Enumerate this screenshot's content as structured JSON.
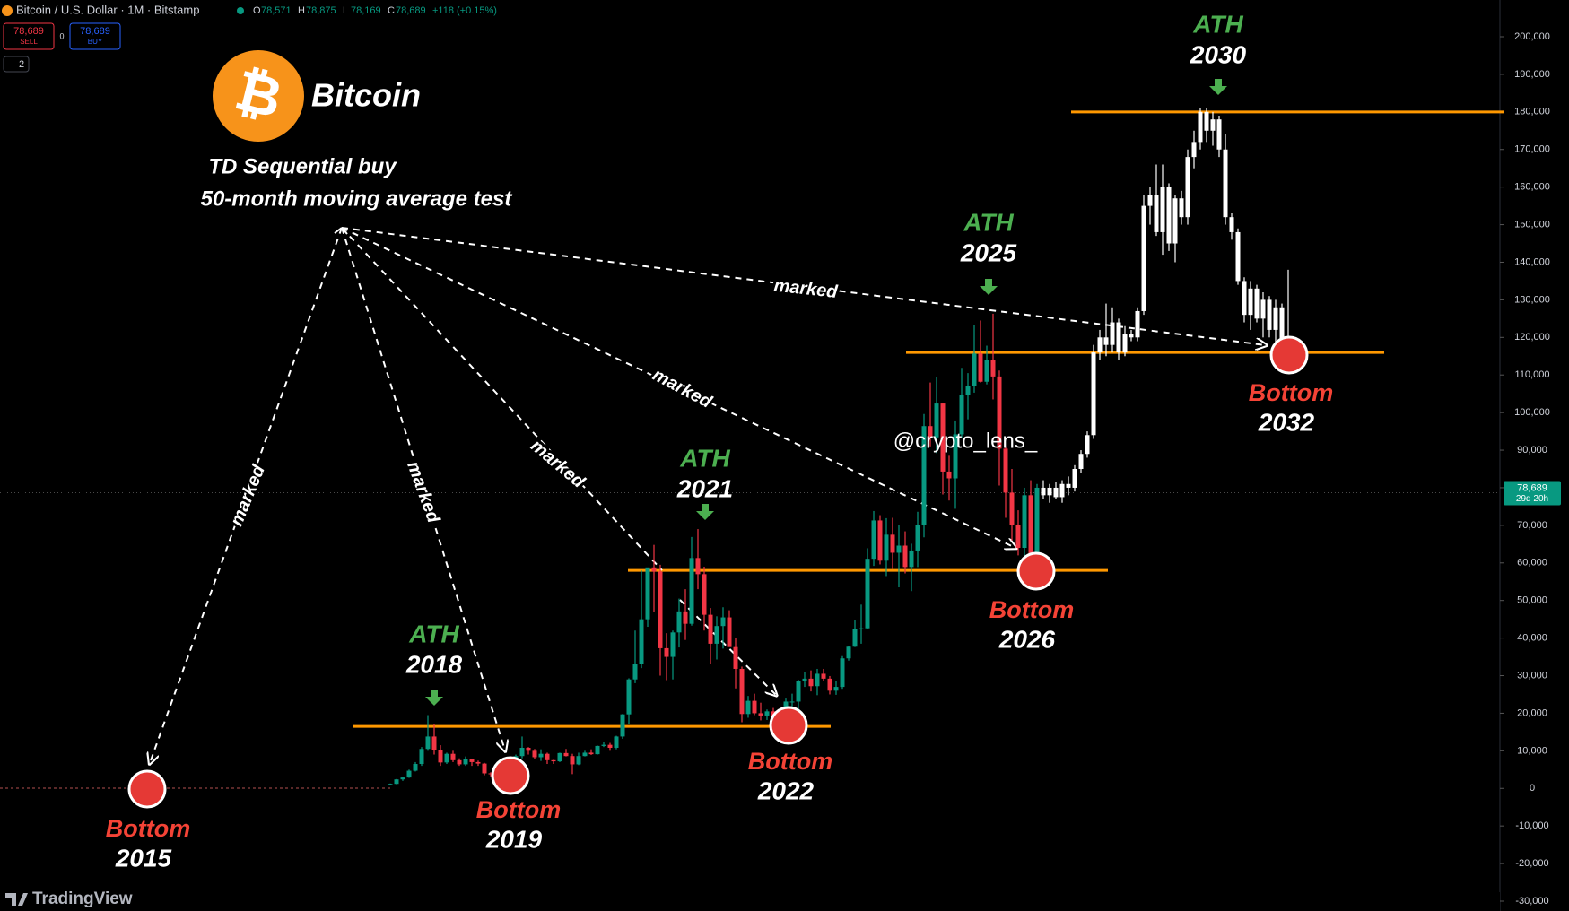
{
  "header": {
    "symbol": "Bitcoin / U.S. Dollar · 1M · Bitstamp",
    "ohlc": [
      {
        "key": "O",
        "value": "78,571"
      },
      {
        "key": "H",
        "value": "78,875"
      },
      {
        "key": "L",
        "value": "78,169"
      },
      {
        "key": "C",
        "value": "78,689"
      }
    ],
    "change": "+118 (+0.15%)",
    "sell": {
      "price": "78,689",
      "label": "SELL"
    },
    "spread": "0",
    "buy": {
      "price": "78,689",
      "label": "BUY"
    },
    "indicators": "2",
    "logo": "TradingView"
  },
  "annotations": {
    "brand": "Bitcoin",
    "subtitle": [
      "TD Sequential buy",
      "50-month moving average test"
    ],
    "marked": [
      "marked",
      "marked",
      "marked",
      "marked",
      "marked"
    ],
    "ath": [
      {
        "label": "ATH",
        "year": "2018"
      },
      {
        "label": "ATH",
        "year": "2021"
      },
      {
        "label": "ATH",
        "year": "2025"
      },
      {
        "label": "ATH",
        "year": "2030"
      }
    ],
    "bottom": [
      {
        "label": "Bottom",
        "year": "2015"
      },
      {
        "label": "Bottom",
        "year": "2019"
      },
      {
        "label": "Bottom",
        "year": "2022"
      },
      {
        "label": "Bottom",
        "year": "2026"
      },
      {
        "label": "Bottom",
        "year": "2032"
      }
    ],
    "watermark": "@crypto_lens_"
  },
  "chart_data": {
    "type": "candlestick",
    "ylim": [
      -30000,
      200000
    ],
    "yticks": [
      {
        "value": -30000,
        "label": "-30,000"
      },
      {
        "value": -20000,
        "label": "-20,000"
      },
      {
        "value": -10000,
        "label": "-10,000"
      },
      0,
      {
        "value": 10000,
        "label": "10,000"
      },
      {
        "value": 20000,
        "label": "20,000"
      },
      {
        "value": 30000,
        "label": "30,000"
      },
      {
        "value": 40000,
        "label": "40,000"
      },
      {
        "value": 50000,
        "label": "50,000"
      },
      {
        "value": 60000,
        "label": "60,000"
      },
      {
        "value": 70000,
        "label": "70,000"
      },
      {
        "value": 80000,
        "label": "80,000"
      },
      {
        "value": 90000,
        "label": "90,000"
      },
      {
        "value": 100000,
        "label": "100,000"
      },
      {
        "value": 110000,
        "label": "110,000"
      },
      {
        "value": 120000,
        "label": "120,000"
      },
      {
        "value": 130000,
        "label": "130,000"
      },
      {
        "value": 140000,
        "label": "140,000"
      },
      {
        "value": 150000,
        "label": "150,000"
      },
      {
        "value": 160000,
        "label": "160,000"
      },
      {
        "value": 170000,
        "label": "170,000"
      },
      {
        "value": 180000,
        "label": "180,000"
      },
      {
        "value": 190000,
        "label": "190,000"
      },
      {
        "value": 200000,
        "label": "200,000"
      }
    ],
    "last_price": {
      "value": 78689,
      "label": "78,689",
      "countdown": "29d 20h"
    },
    "levels": [
      16500,
      58000,
      116000,
      180000
    ],
    "level_color": "#ff9800",
    "series": [
      {
        "up_color": "#089981",
        "down_color": "#f23645",
        "candles": [
          [
            1000,
            1300,
            900,
            1200
          ],
          [
            1200,
            2500,
            1100,
            2400
          ],
          [
            2400,
            3000,
            2000,
            2900
          ],
          [
            2900,
            5000,
            2800,
            4700
          ],
          [
            4700,
            7000,
            4500,
            6500
          ],
          [
            6500,
            11000,
            6000,
            10500
          ],
          [
            10500,
            19500,
            10000,
            13800
          ],
          [
            13800,
            17000,
            9000,
            10200
          ],
          [
            10200,
            11500,
            6000,
            6900
          ],
          [
            6900,
            9500,
            6500,
            9200
          ],
          [
            9200,
            10000,
            7000,
            7500
          ],
          [
            7500,
            8000,
            6000,
            6400
          ],
          [
            6400,
            8500,
            6000,
            7700
          ],
          [
            7700,
            7800,
            6000,
            7000
          ],
          [
            7000,
            7400,
            6000,
            6600
          ],
          [
            6600,
            6800,
            3500,
            4000
          ],
          [
            4000,
            4300,
            3200,
            3800
          ],
          [
            3800,
            4100,
            3300,
            3400
          ],
          [
            3400,
            4200,
            3300,
            4100
          ],
          [
            4100,
            5600,
            4000,
            5300
          ],
          [
            5300,
            9000,
            5200,
            8600
          ],
          [
            8600,
            13800,
            8000,
            10800
          ],
          [
            10800,
            11000,
            9000,
            10000
          ],
          [
            10000,
            10500,
            7800,
            8300
          ],
          [
            8300,
            10400,
            7300,
            9200
          ],
          [
            9200,
            9500,
            6500,
            7500
          ],
          [
            7500,
            7600,
            6500,
            7200
          ],
          [
            7200,
            9500,
            7000,
            9400
          ],
          [
            9400,
            10500,
            8500,
            8600
          ],
          [
            8600,
            9200,
            3800,
            6400
          ],
          [
            6400,
            9500,
            6200,
            8600
          ],
          [
            8600,
            10000,
            8500,
            9500
          ],
          [
            9500,
            10400,
            8900,
            9100
          ],
          [
            9100,
            11400,
            9000,
            11300
          ],
          [
            11300,
            12400,
            11000,
            11600
          ],
          [
            11600,
            12100,
            10000,
            10800
          ],
          [
            10800,
            14000,
            10400,
            13800
          ],
          [
            13800,
            19800,
            13200,
            19700
          ],
          [
            19700,
            29300,
            17000,
            29000
          ],
          [
            29000,
            42000,
            28000,
            33000
          ],
          [
            33000,
            58000,
            32000,
            45000
          ],
          [
            45000,
            58000,
            43000,
            58800
          ],
          [
            58800,
            64800,
            47000,
            57700
          ],
          [
            57700,
            59500,
            30000,
            37300
          ],
          [
            37300,
            41300,
            28800,
            35000
          ],
          [
            35000,
            42000,
            29000,
            41500
          ],
          [
            41500,
            50500,
            37500,
            47100
          ],
          [
            47100,
            53000,
            39500,
            43800
          ],
          [
            43800,
            66900,
            43300,
            61300
          ],
          [
            61300,
            69000,
            53000,
            57000
          ],
          [
            57000,
            59000,
            42000,
            46200
          ],
          [
            46200,
            48000,
            33000,
            38500
          ],
          [
            38500,
            45800,
            34300,
            43200
          ],
          [
            43200,
            48200,
            37200,
            45500
          ],
          [
            45500,
            47400,
            37700,
            37600
          ],
          [
            37600,
            40000,
            26600,
            31800
          ],
          [
            31800,
            32400,
            17600,
            19800
          ],
          [
            19800,
            24600,
            18800,
            23300
          ],
          [
            23300,
            25200,
            19500,
            20000
          ],
          [
            20000,
            22800,
            18100,
            19400
          ],
          [
            19400,
            21000,
            18200,
            20500
          ],
          [
            20500,
            21400,
            15500,
            17200
          ],
          [
            17200,
            18400,
            16300,
            16500
          ],
          [
            16500,
            23900,
            16500,
            23100
          ],
          [
            23100,
            25200,
            21400,
            23100
          ],
          [
            23100,
            28900,
            19500,
            28500
          ],
          [
            28500,
            31000,
            27000,
            29200
          ],
          [
            29200,
            31400,
            25800,
            27200
          ],
          [
            27200,
            31800,
            24800,
            30500
          ],
          [
            30500,
            31800,
            28600,
            29200
          ],
          [
            29200,
            29900,
            25000,
            26000
          ],
          [
            26000,
            28600,
            24900,
            27000
          ],
          [
            27000,
            35200,
            26500,
            34600
          ],
          [
            34600,
            38000,
            34000,
            37700
          ],
          [
            37700,
            44700,
            37600,
            42300
          ],
          [
            42300,
            48900,
            38500,
            42600
          ],
          [
            42600,
            63900,
            42300,
            61100
          ],
          [
            61100,
            73800,
            59200,
            71300
          ],
          [
            71300,
            72700,
            59600,
            60600
          ],
          [
            60600,
            71900,
            56500,
            67500
          ],
          [
            67500,
            72000,
            58400,
            62700
          ],
          [
            62700,
            70000,
            53500,
            64600
          ],
          [
            64600,
            68400,
            57200,
            58900
          ],
          [
            58900,
            65100,
            52500,
            63300
          ],
          [
            63300,
            73600,
            58900,
            70200
          ],
          [
            70200,
            99600,
            66800,
            96400
          ],
          [
            96400,
            108000,
            91000,
            93400
          ],
          [
            93400,
            109500,
            89200,
            102400
          ],
          [
            102400,
            102600,
            78200,
            84300
          ],
          [
            84300,
            88500,
            76600,
            82500
          ],
          [
            82500,
            97900,
            74400,
            94200
          ],
          [
            94200,
            111900,
            93300,
            104600
          ],
          [
            104600,
            110500,
            98200,
            107100
          ],
          [
            107100,
            123200,
            105300,
            115700
          ],
          [
            115700,
            124500,
            108000,
            108200
          ],
          [
            108200,
            117800,
            107500,
            114000
          ],
          [
            114000,
            126300,
            103500,
            109600
          ],
          [
            109600,
            111200,
            80600,
            90400
          ],
          [
            90400,
            91000,
            72000,
            78700
          ],
          [
            78700,
            85000,
            66000,
            70000
          ],
          [
            70000,
            74000,
            62000,
            64000
          ],
          [
            64000,
            80000,
            60000,
            78000
          ],
          [
            78000,
            82000,
            58000,
            60000
          ],
          [
            60000,
            81000,
            59000,
            80000
          ]
        ]
      },
      {
        "up_color": "#ffffff",
        "down_color": "#ffffff",
        "candles": [
          [
            80000,
            82000,
            77000,
            78000
          ],
          [
            78000,
            81000,
            76000,
            80000
          ],
          [
            80000,
            81500,
            77000,
            77500
          ],
          [
            77500,
            82000,
            76000,
            81000
          ],
          [
            81000,
            83000,
            78000,
            80000
          ],
          [
            80000,
            86000,
            79000,
            85000
          ],
          [
            85000,
            90000,
            84000,
            89000
          ],
          [
            89000,
            95000,
            88000,
            94000
          ],
          [
            94000,
            118000,
            93000,
            116000
          ],
          [
            116000,
            122000,
            114000,
            120000
          ],
          [
            120000,
            129000,
            115000,
            118000
          ],
          [
            118000,
            128000,
            116000,
            124000
          ],
          [
            124000,
            125000,
            114000,
            116000
          ],
          [
            116000,
            123000,
            115000,
            121000
          ],
          [
            121000,
            122000,
            119000,
            120000
          ],
          [
            120000,
            128000,
            119000,
            127000
          ],
          [
            127000,
            158000,
            126000,
            155000
          ],
          [
            155000,
            160000,
            150000,
            158000
          ],
          [
            158000,
            166000,
            147000,
            148000
          ],
          [
            148000,
            166000,
            142000,
            160000
          ],
          [
            160000,
            161000,
            143000,
            145000
          ],
          [
            145000,
            158000,
            140000,
            157000
          ],
          [
            157000,
            159000,
            150000,
            152000
          ],
          [
            152000,
            170000,
            150000,
            168000
          ],
          [
            168000,
            175000,
            165000,
            172000
          ],
          [
            172000,
            181000,
            170000,
            180000
          ],
          [
            180000,
            181000,
            172000,
            175000
          ],
          [
            175000,
            180000,
            171000,
            178000
          ],
          [
            178000,
            179000,
            168000,
            170000
          ],
          [
            170000,
            174000,
            150000,
            152000
          ],
          [
            152000,
            153000,
            146000,
            148000
          ],
          [
            148000,
            149000,
            134000,
            135000
          ],
          [
            135000,
            136000,
            124000,
            126000
          ],
          [
            126000,
            135000,
            122000,
            133000
          ],
          [
            133000,
            134000,
            124000,
            125000
          ],
          [
            125000,
            132000,
            120000,
            130000
          ],
          [
            130000,
            131000,
            120000,
            122000
          ],
          [
            122000,
            130000,
            118000,
            128000
          ],
          [
            128000,
            129000,
            116000,
            118000
          ],
          [
            118000,
            138000,
            115000,
            117000
          ],
          [
            117000,
            120000,
            115000,
            116000
          ],
          [
            116000,
            118000,
            114000,
            115000
          ]
        ]
      }
    ]
  }
}
